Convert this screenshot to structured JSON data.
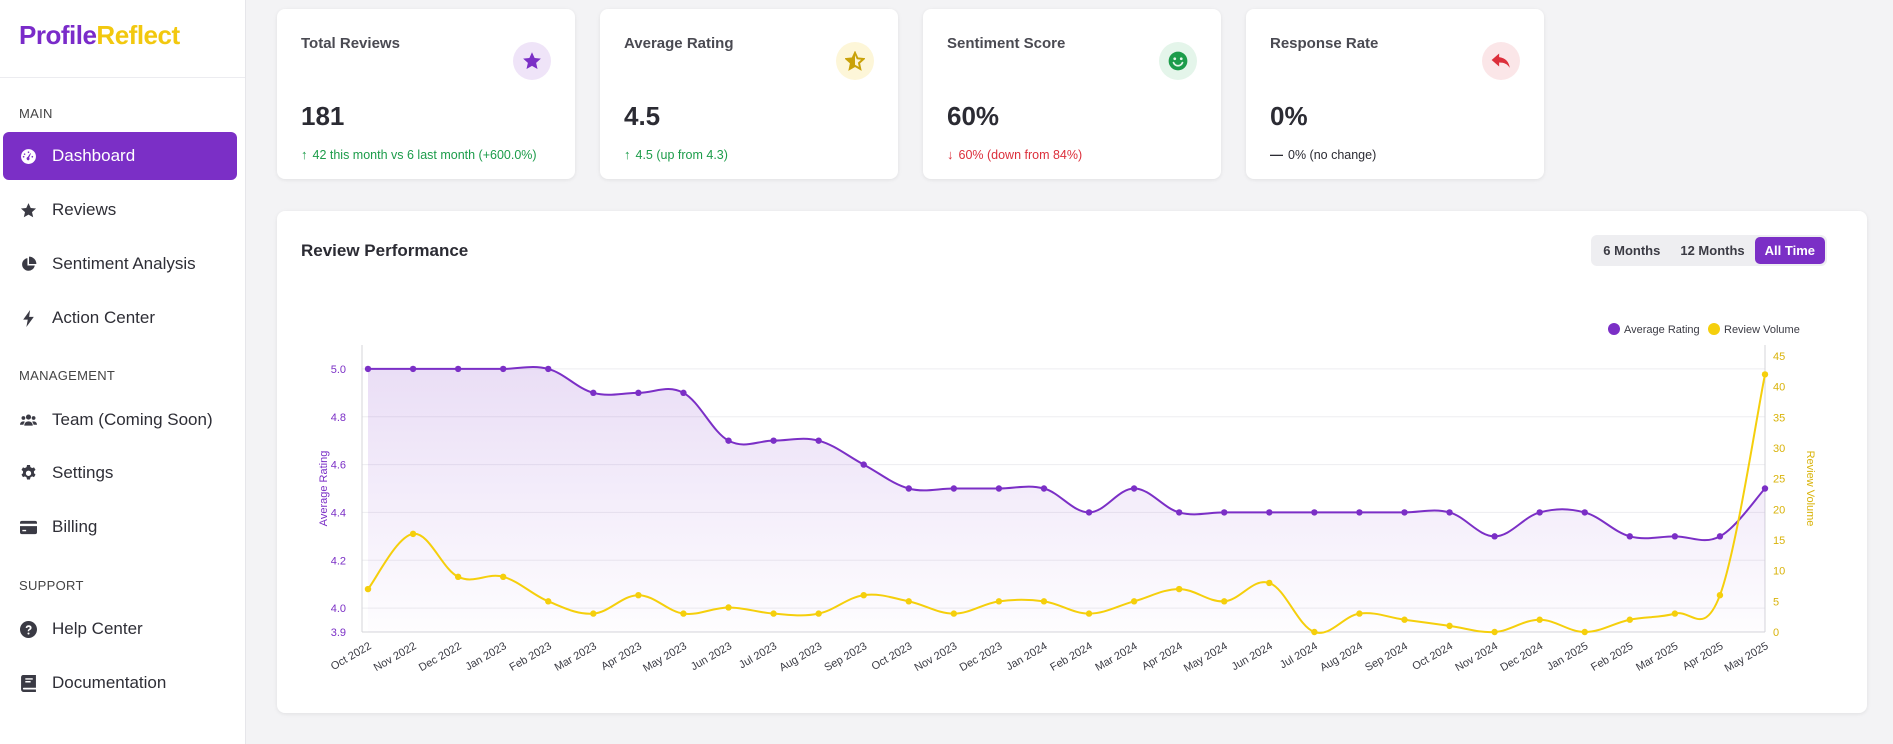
{
  "brand": {
    "part1": "Profile",
    "part2": "Reflect"
  },
  "sidebar": {
    "sections": [
      {
        "label": "MAIN"
      },
      {
        "label": "MANAGEMENT"
      },
      {
        "label": "SUPPORT"
      }
    ],
    "items": [
      {
        "label": "Dashboard",
        "icon": "gauge-icon"
      },
      {
        "label": "Reviews",
        "icon": "star-icon"
      },
      {
        "label": "Sentiment Analysis",
        "icon": "pie-chart-icon"
      },
      {
        "label": "Action Center",
        "icon": "bolt-icon"
      },
      {
        "label": "Team (Coming Soon)",
        "icon": "users-icon"
      },
      {
        "label": "Settings",
        "icon": "gear-icon"
      },
      {
        "label": "Billing",
        "icon": "credit-card-icon"
      },
      {
        "label": "Help Center",
        "icon": "question-circle-icon"
      },
      {
        "label": "Documentation",
        "icon": "book-icon"
      }
    ]
  },
  "stats": [
    {
      "title": "Total Reviews",
      "value": "181",
      "trend": "up",
      "sub": "42 this month vs 6 last month (+600.0%)",
      "icon": "star-icon",
      "badge_bg": "#efe4f8",
      "icon_color": "#7b2fc6"
    },
    {
      "title": "Average Rating",
      "value": "4.5",
      "trend": "up",
      "sub": "4.5 (up from 4.3)",
      "icon": "half-star-icon",
      "badge_bg": "#fdf6d8",
      "icon_color": "#c9a20a"
    },
    {
      "title": "Sentiment Score",
      "value": "60%",
      "trend": "down",
      "sub": "60% (down from 84%)",
      "icon": "smile-icon",
      "badge_bg": "#e4f5ea",
      "icon_color": "#1c9c4a"
    },
    {
      "title": "Response Rate",
      "value": "0%",
      "trend": "flat",
      "sub": "0% (no change)",
      "icon": "reply-icon",
      "badge_bg": "#fbe6e8",
      "icon_color": "#dc2f3b"
    }
  ],
  "performance": {
    "title": "Review Performance",
    "ranges": [
      "6 Months",
      "12 Months",
      "All Time"
    ],
    "active_range": "All Time"
  },
  "chart_data": {
    "type": "line",
    "categories": [
      "Oct 2022",
      "Nov 2022",
      "Dec 2022",
      "Jan 2023",
      "Feb 2023",
      "Mar 2023",
      "Apr 2023",
      "May 2023",
      "Jun 2023",
      "Jul 2023",
      "Aug 2023",
      "Sep 2023",
      "Oct 2023",
      "Nov 2023",
      "Dec 2023",
      "Jan 2024",
      "Feb 2024",
      "Mar 2024",
      "Apr 2024",
      "May 2024",
      "Jun 2024",
      "Jul 2024",
      "Aug 2024",
      "Sep 2024",
      "Oct 2024",
      "Nov 2024",
      "Dec 2024",
      "Jan 2025",
      "Feb 2025",
      "Mar 2025",
      "Apr 2025",
      "May 2025"
    ],
    "series": [
      {
        "name": "Average Rating",
        "axis": "left",
        "color": "#7b2fc6",
        "values": [
          5.0,
          5.0,
          5.0,
          5.0,
          5.0,
          4.9,
          4.9,
          4.9,
          4.7,
          4.7,
          4.7,
          4.6,
          4.5,
          4.5,
          4.5,
          4.5,
          4.4,
          4.5,
          4.4,
          4.4,
          4.4,
          4.4,
          4.4,
          4.4,
          4.4,
          4.3,
          4.4,
          4.4,
          4.3,
          4.3,
          4.3,
          4.5
        ]
      },
      {
        "name": "Review Volume",
        "axis": "right",
        "color": "#f5cf0c",
        "values": [
          7,
          16,
          9,
          9,
          5,
          3,
          6,
          3,
          4,
          3,
          3,
          6,
          5,
          3,
          5,
          5,
          3,
          5,
          7,
          5,
          8,
          0,
          3,
          2,
          1,
          0,
          2,
          0,
          2,
          3,
          6,
          42
        ]
      }
    ],
    "y_left": {
      "label": "Average Rating",
      "min": 3.9,
      "max": 5.1,
      "ticks": [
        "3.9",
        "4.0",
        "4.2",
        "4.4",
        "4.6",
        "4.8",
        "5.0"
      ]
    },
    "y_right": {
      "label": "Review Volume",
      "min": 0,
      "max": 45,
      "ticks": [
        "0",
        "5",
        "10",
        "15",
        "20",
        "25",
        "30",
        "35",
        "40",
        "45"
      ]
    },
    "legend_position": "top-right",
    "grid": true
  }
}
